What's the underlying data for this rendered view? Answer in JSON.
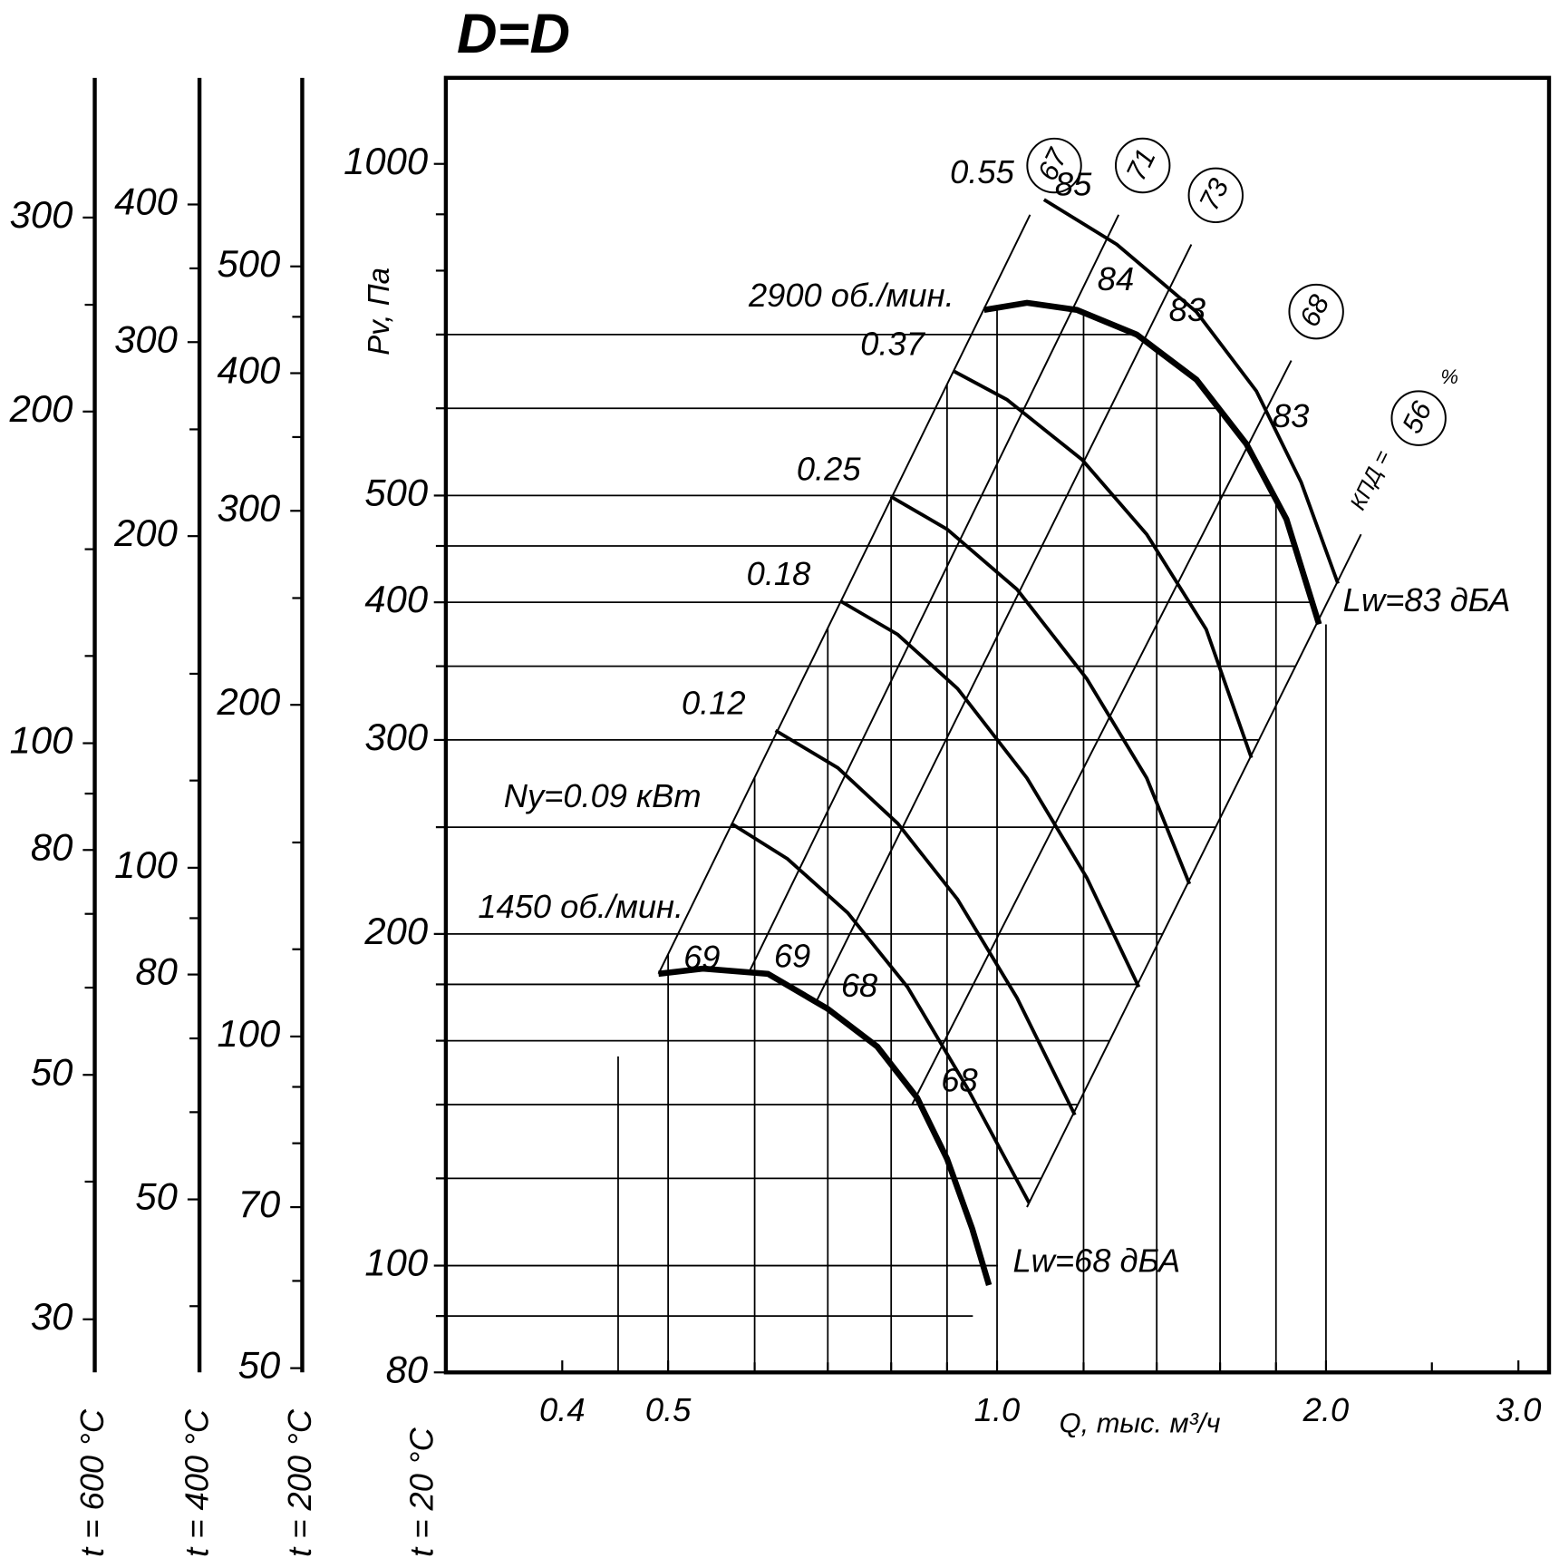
{
  "chart_data": {
    "type": "fan_performance",
    "title": "D=D",
    "y_label": "Pv, Па",
    "x_label": "Q, тыс. м³/ч",
    "main_axis_label": "t = 20 °C",
    "xscale": "log",
    "yscale": "log",
    "xlim": [
      0.313,
      3.2
    ],
    "ylim": [
      80,
      1197
    ],
    "xticks": [
      0.4,
      0.5,
      {
        "value": 1,
        "label": "1.0"
      },
      {
        "value": 2,
        "label": "2.0"
      },
      {
        "value": 3,
        "label": "3.0"
      }
    ],
    "xminor": [
      0.6,
      0.7,
      0.8,
      0.9,
      1.2,
      1.4,
      1.6,
      1.8,
      2.5
    ],
    "yticks": [
      80,
      100,
      200,
      300,
      400,
      500,
      1000
    ],
    "yminor": [
      90,
      120,
      140,
      160,
      180,
      250,
      350,
      450,
      600,
      700,
      800,
      900
    ],
    "hgrid": [
      90,
      100,
      120,
      140,
      160,
      180,
      200,
      250,
      300,
      350,
      400,
      450,
      500,
      600,
      700
    ],
    "vgrid": [
      0.45,
      0.5,
      0.6,
      0.7,
      0.8,
      0.9,
      1,
      1.2,
      1.4,
      1.6,
      1.8,
      2
    ],
    "speed_curves": [
      {
        "name": "2900 об./мин.",
        "lw_label": "Lw=83 дБА",
        "q": [
          0.973,
          1.065,
          1.183,
          1.342,
          1.522,
          1.691,
          1.84,
          1.971
        ],
        "values": [
          737,
          748,
          737,
          700,
          637,
          557,
          476,
          382
        ]
      },
      {
        "name": "1450 об./мин.",
        "lw_label": "Lw=68 дБА",
        "q": [
          0.49,
          0.538,
          0.617,
          0.7,
          0.777,
          0.845,
          0.9,
          0.949,
          0.983
        ],
        "values": [
          184,
          186,
          184,
          171,
          158,
          142,
          125,
          108,
          96
        ]
      }
    ],
    "power_curves": [
      {
        "name": "0.55",
        "q": [
          1.104,
          1.287,
          1.522,
          1.727,
          1.898,
          2.051
        ],
        "values": [
          928,
          845,
          734,
          622,
          514,
          416
        ]
      },
      {
        "name": "0.37",
        "q": [
          0.914,
          1.021,
          1.196,
          1.371,
          1.554,
          1.709
        ],
        "values": [
          648,
          611,
          539,
          461,
          378,
          289
        ]
      },
      {
        "name": "0.25",
        "q": [
          0.799,
          0.9,
          1.043,
          1.208,
          1.371,
          1.5
        ],
        "values": [
          499,
          466,
          411,
          341,
          277,
          222
        ]
      },
      {
        "name": "0.18",
        "q": [
          0.719,
          0.811,
          0.92,
          1.065,
          1.208,
          1.348
        ],
        "values": [
          401,
          374,
          334,
          277,
          225,
          179
        ]
      },
      {
        "name": "0.12",
        "q": [
          0.627,
          0.715,
          0.811,
          0.92,
          1.043,
          1.178
        ],
        "values": [
          306,
          283,
          252,
          215,
          175,
          137
        ]
      },
      {
        "name": "Ny=0.09 кВт",
        "q": [
          0.571,
          0.643,
          0.73,
          0.828,
          0.939,
          1.07
        ],
        "values": [
          252,
          234,
          209,
          179,
          145,
          114
        ]
      }
    ],
    "efficiency_label": "КПД =",
    "efficiency_unit": "%",
    "efficiency_lines": [
      {
        "efficiency": 67,
        "lw_high": 85,
        "lw_low": 69,
        "q": [
          0.49,
          1.072
        ],
        "values": [
          184,
          899
        ]
      },
      {
        "efficiency": 71,
        "lw_high": 84,
        "lw_low": 69,
        "q": [
          0.592,
          1.292
        ],
        "values": [
          184,
          899
        ]
      },
      {
        "efficiency": 73,
        "lw_high": 83,
        "lw_low": 68,
        "q": [
          0.682,
          1.506
        ],
        "values": [
          173,
          845
        ]
      },
      {
        "efficiency": 68,
        "lw_high": 83,
        "lw_low": 68,
        "q": [
          0.836,
          1.859
        ],
        "values": [
          140,
          663
        ]
      },
      {
        "efficiency": 56,
        "q": [
          1.065,
          2.153
        ],
        "values": [
          113,
          461
        ]
      }
    ],
    "temperature_axes": [
      {
        "label": "t = 600 °C",
        "ylim": [
          26.85,
          401.7
        ],
        "yticks": [
          30,
          50,
          80,
          100,
          200,
          300
        ],
        "yminor": [
          40,
          60,
          70,
          90,
          120,
          150,
          250
        ]
      },
      {
        "label": "t = 400 °C",
        "ylim": [
          34.83,
          521.2
        ],
        "yticks": [
          50,
          80,
          100,
          200,
          300,
          400
        ],
        "yminor": [
          40,
          60,
          70,
          90,
          120,
          150,
          250,
          350
        ]
      },
      {
        "label": "t = 200 °C",
        "ylim": [
          49.56,
          741.5
        ],
        "yticks": [
          50,
          70,
          100,
          200,
          300,
          400,
          500
        ],
        "yminor": [
          60,
          80,
          90,
          120,
          150,
          250,
          350,
          450
        ]
      }
    ]
  }
}
